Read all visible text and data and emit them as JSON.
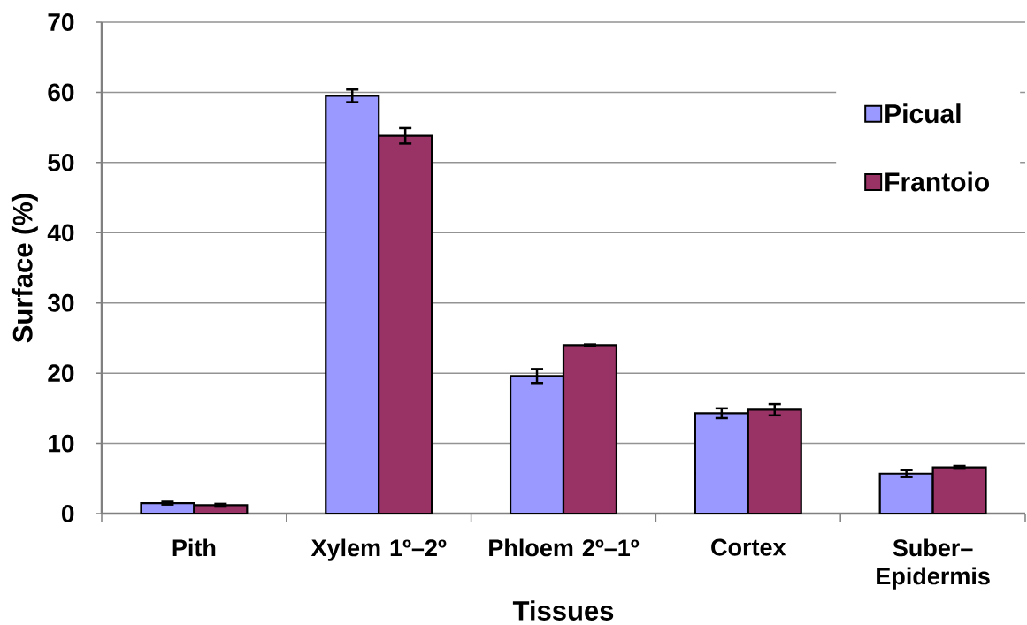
{
  "chart_data": {
    "type": "bar",
    "xlabel": "Tissues",
    "ylabel": "Surface (%)",
    "categories": [
      "Pith",
      "Xylem 1º–2º",
      "Phloem 2º–1º",
      "Cortex",
      "Suber–Epidermis"
    ],
    "series": [
      {
        "name": "Picual",
        "color": "#9999ff",
        "values": [
          1.5,
          59.5,
          19.6,
          14.3,
          5.7
        ],
        "errors": [
          0.2,
          0.9,
          1.0,
          0.7,
          0.5
        ]
      },
      {
        "name": "Frantoio",
        "color": "#993366",
        "values": [
          1.2,
          53.8,
          24.0,
          14.8,
          6.6
        ],
        "errors": [
          0.2,
          1.1,
          0.1,
          0.8,
          0.2
        ]
      }
    ],
    "ylim": [
      0,
      70
    ],
    "yticks": [
      0,
      10,
      20,
      30,
      40,
      50,
      60,
      70
    ],
    "grid": "y",
    "legend": "top right"
  }
}
